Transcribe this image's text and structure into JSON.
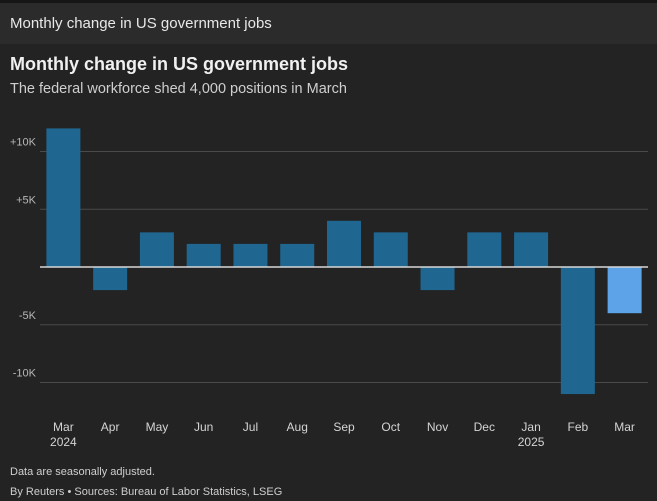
{
  "header": {
    "title": "Monthly change in US government jobs"
  },
  "chart_data": {
    "type": "bar",
    "title": "Monthly change in US government jobs",
    "subtitle": "The federal workforce shed 4,000 positions in March",
    "xlabel": "",
    "ylabel": "",
    "categories": [
      "Mar",
      "Apr",
      "May",
      "Jun",
      "Jul",
      "Aug",
      "Sep",
      "Oct",
      "Nov",
      "Dec",
      "Jan",
      "Feb",
      "Mar"
    ],
    "year_labels": [
      "2024",
      "",
      "",
      "",
      "",
      "",
      "",
      "",
      "",
      "",
      "2025",
      "",
      ""
    ],
    "values": [
      12000,
      -2000,
      3000,
      2000,
      2000,
      2000,
      4000,
      3000,
      -2000,
      3000,
      3000,
      -11000,
      -4000
    ],
    "ylim": [
      -12000,
      12500
    ],
    "yticks": [
      {
        "value": 10000,
        "label": "+10K"
      },
      {
        "value": 5000,
        "label": "+5K"
      },
      {
        "value": -5000,
        "label": "-5K"
      },
      {
        "value": -10000,
        "label": "-10K"
      }
    ],
    "grid": true,
    "colors": {
      "bar": "#1f6690",
      "highlight": "#5da3e8",
      "grid": "#4a4a4a",
      "axis": "#d8d8d8",
      "tick_text": "#b8b8b8"
    },
    "highlight_index": 12
  },
  "footer": {
    "note": "Data are seasonally adjusted.",
    "credit": "By Reuters • Sources: Bureau of Labor Statistics, LSEG"
  }
}
